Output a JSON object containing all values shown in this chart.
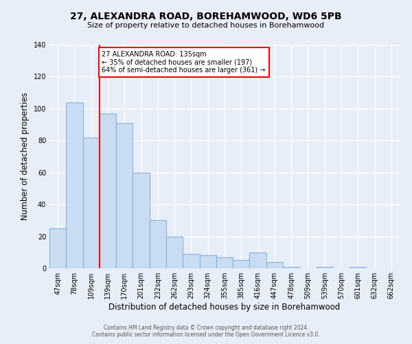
{
  "title": "27, ALEXANDRA ROAD, BOREHAMWOOD, WD6 5PB",
  "subtitle": "Size of property relative to detached houses in Borehamwood",
  "xlabel": "Distribution of detached houses by size in Borehamwood",
  "ylabel": "Number of detached properties",
  "bar_labels": [
    "47sqm",
    "78sqm",
    "109sqm",
    "139sqm",
    "170sqm",
    "201sqm",
    "232sqm",
    "262sqm",
    "293sqm",
    "324sqm",
    "355sqm",
    "385sqm",
    "416sqm",
    "447sqm",
    "478sqm",
    "509sqm",
    "539sqm",
    "570sqm",
    "601sqm",
    "632sqm",
    "662sqm"
  ],
  "bar_values": [
    25,
    104,
    82,
    97,
    91,
    60,
    30,
    20,
    9,
    8,
    7,
    5,
    10,
    4,
    1,
    0,
    1,
    0,
    1,
    0,
    0
  ],
  "bar_color": "#c9dcf2",
  "bar_edge_color": "#8ab0d8",
  "vline_position": 2.5,
  "vline_color": "red",
  "annotation_text": "27 ALEXANDRA ROAD: 135sqm\n← 35% of detached houses are smaller (197)\n64% of semi-detached houses are larger (361) →",
  "annotation_box_color": "white",
  "annotation_border_color": "red",
  "ylim": [
    0,
    140
  ],
  "yticks": [
    0,
    20,
    40,
    60,
    80,
    100,
    120,
    140
  ],
  "bg_color": "#e8eef8",
  "grid_color": "#ffffff",
  "footer_line1": "Contains HM Land Registry data © Crown copyright and database right 2024.",
  "footer_line2": "Contains public sector information licensed under the Open Government Licence v3.0."
}
